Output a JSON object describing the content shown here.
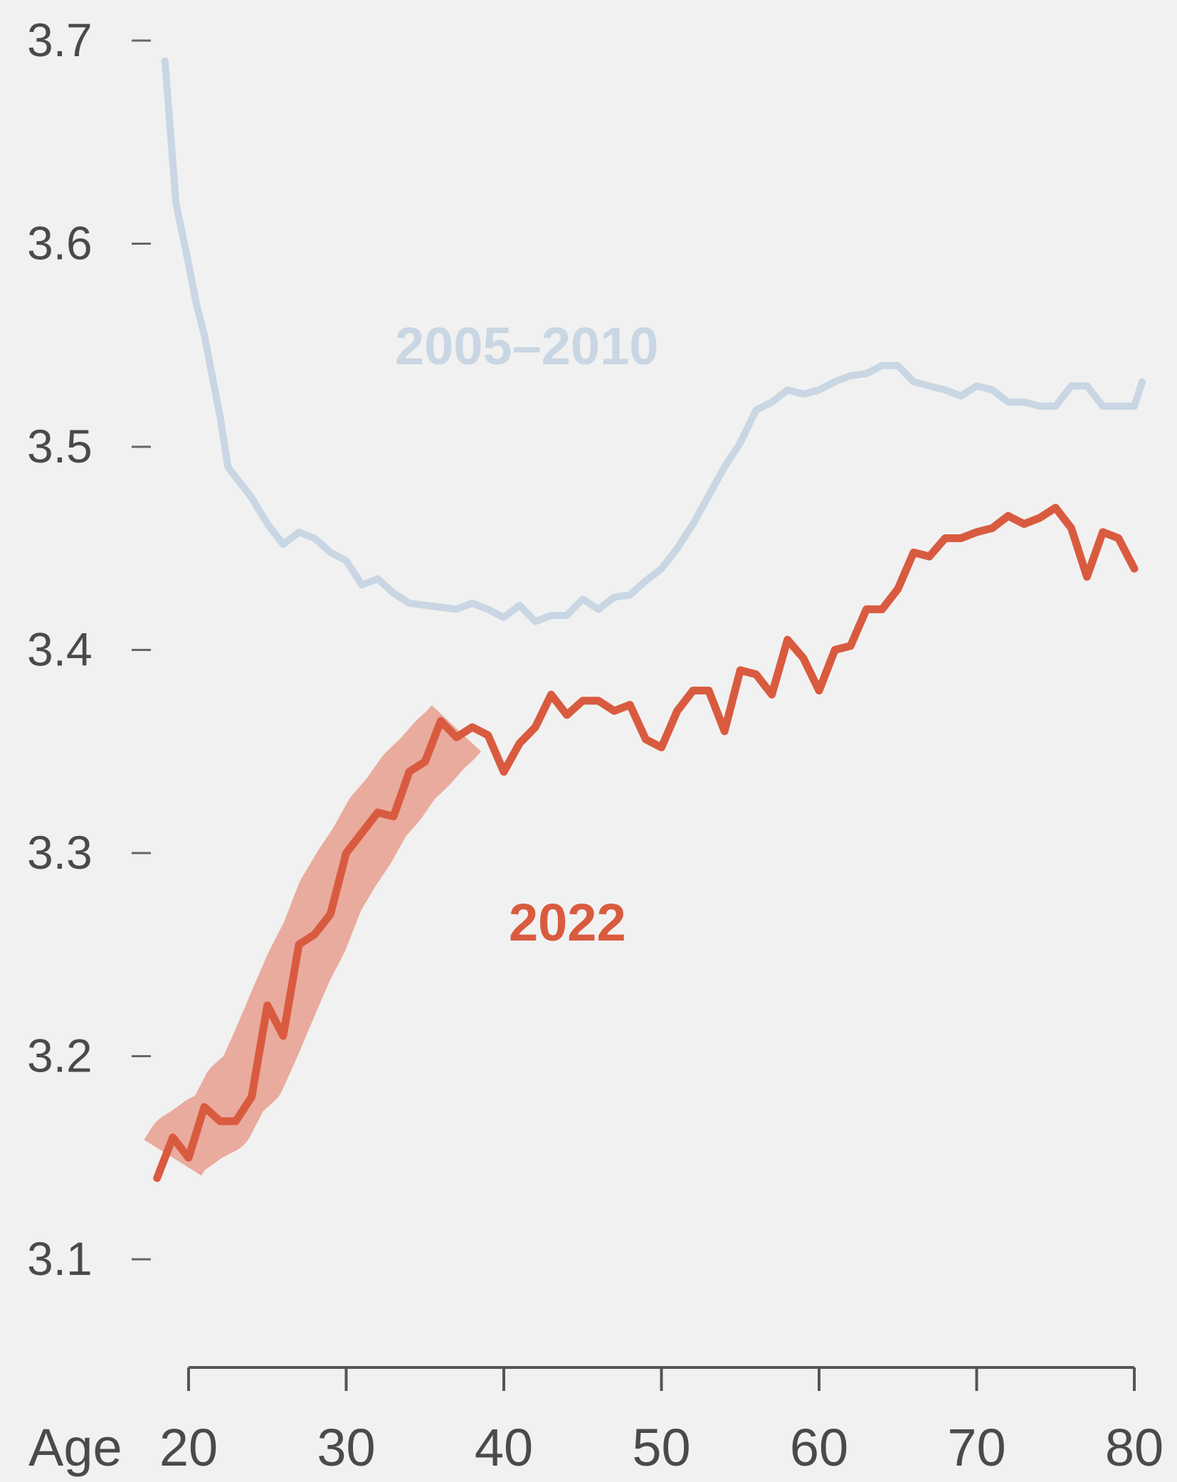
{
  "chart_data": {
    "type": "line",
    "title": "",
    "xlabel": "Age",
    "ylabel": "",
    "xlim": [
      20,
      80
    ],
    "ylim": [
      3.1,
      3.7
    ],
    "x_ticks": [
      20,
      30,
      40,
      50,
      60,
      70,
      80
    ],
    "y_ticks": [
      3.1,
      3.2,
      3.3,
      3.4,
      3.5,
      3.6,
      3.7
    ],
    "y_tick_labels": [
      "3.1",
      "3.2",
      "3.3",
      "3.4",
      "3.5",
      "3.6",
      "3.7"
    ],
    "x_tick_labels": [
      "20",
      "30",
      "40",
      "50",
      "60",
      "70",
      "80"
    ],
    "highlight": {
      "x_range": [
        18,
        38
      ],
      "color": "#e8a394"
    },
    "grid": false,
    "legend": "none",
    "series": [
      {
        "name": "2005–2010",
        "color": "#c9d6e3",
        "x": [
          18.5,
          19.2,
          20,
          20.5,
          21,
          21.5,
          22,
          22.5,
          23,
          24,
          25,
          26,
          27,
          28,
          29,
          30,
          31,
          32,
          33,
          34,
          35,
          36,
          37,
          38,
          39,
          40,
          41,
          42,
          43,
          44,
          45,
          46,
          47,
          48,
          49,
          50,
          51,
          52,
          53,
          54,
          55,
          56,
          57,
          58,
          59,
          60,
          61,
          62,
          63,
          64,
          65,
          66,
          67,
          68,
          69,
          70,
          71,
          72,
          73,
          74,
          75,
          76,
          77,
          78,
          79,
          80,
          80.5
        ],
        "values": [
          3.69,
          3.62,
          3.59,
          3.57,
          3.555,
          3.535,
          3.515,
          3.49,
          3.485,
          3.475,
          3.462,
          3.452,
          3.458,
          3.455,
          3.448,
          3.444,
          3.432,
          3.435,
          3.428,
          3.423,
          3.422,
          3.421,
          3.42,
          3.423,
          3.42,
          3.416,
          3.422,
          3.414,
          3.417,
          3.417,
          3.425,
          3.42,
          3.426,
          3.427,
          3.434,
          3.44,
          3.45,
          3.462,
          3.476,
          3.49,
          3.502,
          3.518,
          3.522,
          3.528,
          3.526,
          3.528,
          3.532,
          3.535,
          3.536,
          3.54,
          3.54,
          3.532,
          3.53,
          3.528,
          3.525,
          3.53,
          3.528,
          3.522,
          3.522,
          3.52,
          3.52,
          3.53,
          3.53,
          3.52,
          3.52,
          3.52,
          3.532
        ]
      },
      {
        "name": "2022",
        "color": "#d95b3f",
        "x": [
          18,
          19,
          20,
          21,
          22,
          23,
          24,
          25,
          26,
          27,
          28,
          29,
          30,
          31,
          32,
          33,
          34,
          35,
          36,
          37,
          38,
          39,
          40,
          41,
          42,
          43,
          44,
          45,
          46,
          47,
          48,
          49,
          50,
          51,
          52,
          53,
          54,
          55,
          56,
          57,
          58,
          59,
          60,
          61,
          62,
          63,
          64,
          65,
          66,
          67,
          68,
          69,
          70,
          71,
          72,
          73,
          74,
          75,
          76,
          77,
          78,
          79,
          80
        ],
        "values": [
          3.14,
          3.16,
          3.15,
          3.175,
          3.168,
          3.168,
          3.18,
          3.225,
          3.21,
          3.255,
          3.26,
          3.27,
          3.3,
          3.31,
          3.32,
          3.318,
          3.34,
          3.345,
          3.365,
          3.357,
          3.362,
          3.358,
          3.34,
          3.354,
          3.362,
          3.378,
          3.368,
          3.375,
          3.375,
          3.37,
          3.373,
          3.356,
          3.352,
          3.37,
          3.38,
          3.38,
          3.36,
          3.39,
          3.388,
          3.378,
          3.405,
          3.396,
          3.38,
          3.4,
          3.402,
          3.42,
          3.42,
          3.43,
          3.448,
          3.446,
          3.455,
          3.455,
          3.458,
          3.46,
          3.466,
          3.462,
          3.465,
          3.47,
          3.46,
          3.436,
          3.458,
          3.455,
          3.44
        ]
      }
    ]
  },
  "labels": {
    "x_axis_prefix": "Age",
    "series_a_label": "2005–2010",
    "series_b_label": "2022"
  }
}
